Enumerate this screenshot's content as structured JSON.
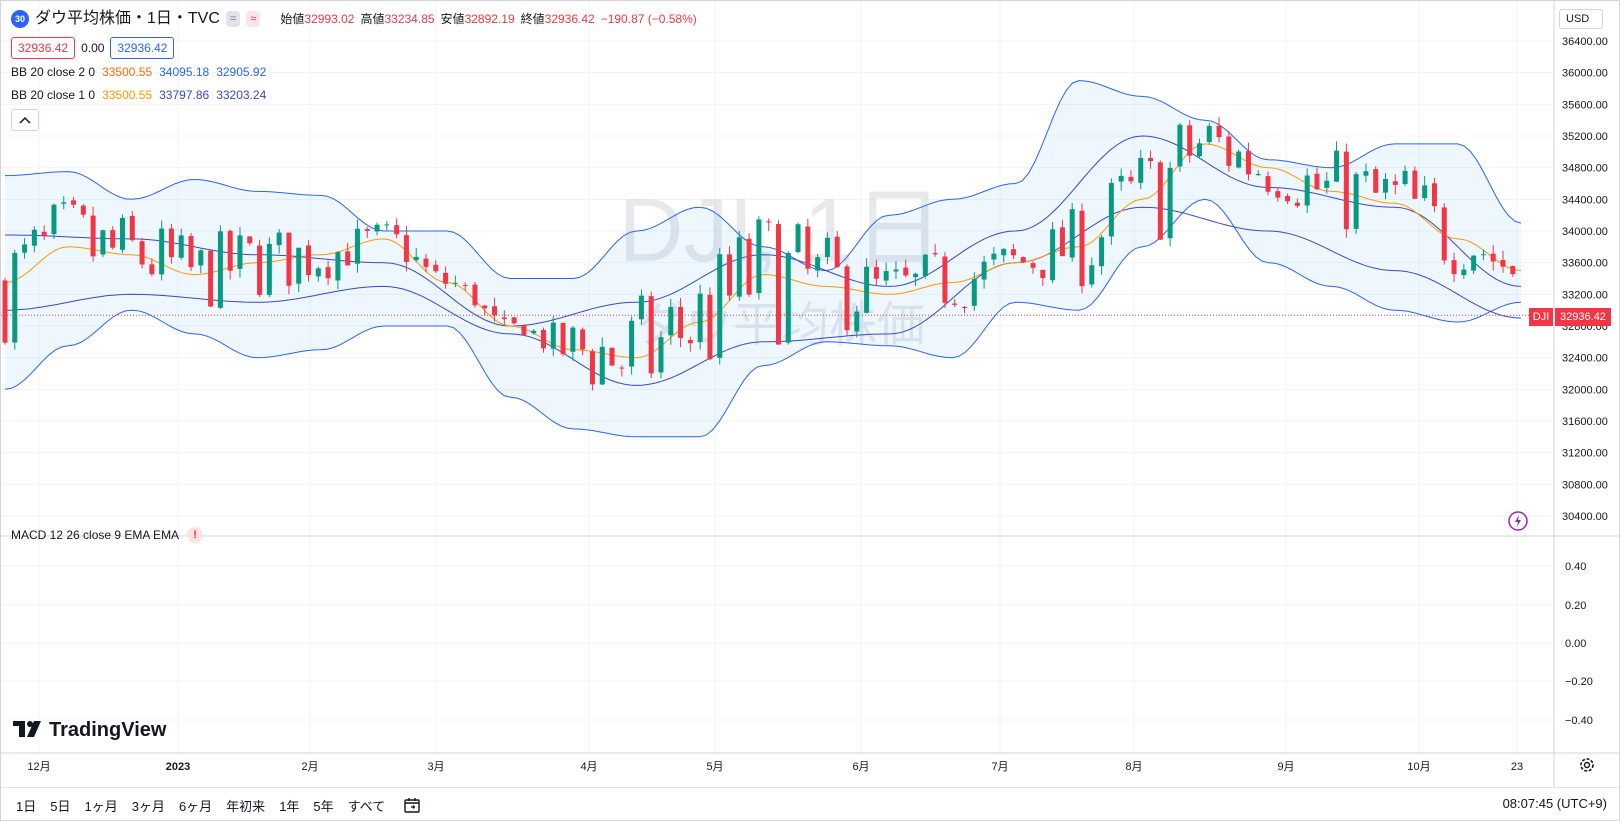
{
  "header": {
    "symbol_badge": "30",
    "title": "ダウ平均株価・1日・TVC",
    "pill_gray": "=",
    "pill_pink": "≈",
    "ohlc": [
      {
        "label": "始値",
        "value": "32993.02"
      },
      {
        "label": "高値",
        "value": "33234.85"
      },
      {
        "label": "安値",
        "value": "32892.19"
      },
      {
        "label": "終値",
        "value": "32936.42"
      },
      {
        "label": "",
        "value": "−190.87 (−0.58%)"
      }
    ],
    "bid": "32936.42",
    "spread": "0.00",
    "ask": "32936.42",
    "collapse_icon": "chevron-up-icon"
  },
  "indicators": [
    {
      "label": "BB 20 close 2 0",
      "basis": "33500.55",
      "upper": "34095.18",
      "lower": "32905.92"
    },
    {
      "label": "BB 20 close 1 0",
      "basis": "33500.55",
      "upper": "33797.86",
      "lower": "33203.24"
    }
  ],
  "watermark": {
    "main": "DJI, 1日",
    "sub": "ダウ平均株価"
  },
  "currency": "USD",
  "last_price": {
    "symbol": "DJI",
    "value": "32936.42"
  },
  "price_axis_ticks": [
    "36400.00",
    "36000.00",
    "35600.00",
    "35200.00",
    "34800.00",
    "34400.00",
    "34000.00",
    "33600.00",
    "33200.00",
    "32800.00",
    "32400.00",
    "32000.00",
    "31600.00",
    "31200.00",
    "30800.00",
    "30400.00"
  ],
  "macd": {
    "label": "MACD 12 26 close 9 EMA EMA",
    "warning": "!",
    "ticks": [
      "0.40",
      "0.20",
      "0.00",
      "−0.20",
      "−0.40"
    ]
  },
  "time_axis": [
    "12月",
    "2023",
    "2月",
    "3月",
    "4月",
    "5月",
    "6月",
    "7月",
    "8月",
    "9月",
    "10月",
    "23"
  ],
  "logo": {
    "text": "TradingView"
  },
  "ranges": [
    "1日",
    "5日",
    "1ヶ月",
    "3ヶ月",
    "6ヶ月",
    "年初来",
    "1年",
    "5年",
    "すべて"
  ],
  "clock": "08:07:45 (UTC+9)",
  "colors": {
    "up": "#089981",
    "down": "#f23645",
    "band_outer": "#2962ff",
    "band_inner": "#3848c9",
    "basis": "#ff9800",
    "band_fill": "#e3f2fd"
  },
  "chart_data": {
    "type": "candlestick",
    "title": "ダウ平均株価・1日・TVC",
    "y_axis_range": [
      30200,
      36600
    ],
    "x_range": [
      "2022-11-23",
      "2023-10-23"
    ],
    "series": [
      {
        "name": "BB 20 close 2 0",
        "type": "band",
        "upper_points": [
          [
            0,
            34700
          ],
          [
            20,
            34750
          ],
          [
            40,
            34400
          ],
          [
            60,
            34650
          ],
          [
            80,
            34500
          ],
          [
            100,
            34450
          ],
          [
            120,
            34000
          ],
          [
            140,
            34000
          ],
          [
            160,
            33400
          ],
          [
            180,
            33400
          ],
          [
            200,
            34000
          ],
          [
            220,
            34300
          ],
          [
            240,
            33800
          ],
          [
            260,
            33500
          ],
          [
            280,
            34200
          ],
          [
            300,
            34400
          ],
          [
            320,
            34600
          ],
          [
            340,
            35900
          ],
          [
            360,
            35700
          ],
          [
            380,
            35400
          ],
          [
            400,
            34900
          ],
          [
            420,
            34800
          ],
          [
            440,
            35100
          ],
          [
            460,
            35100
          ],
          [
            480,
            34100
          ]
        ],
        "lower_points": [
          [
            0,
            32000
          ],
          [
            20,
            32550
          ],
          [
            40,
            33000
          ],
          [
            60,
            32700
          ],
          [
            80,
            32400
          ],
          [
            100,
            32500
          ],
          [
            120,
            32800
          ],
          [
            140,
            32800
          ],
          [
            160,
            31900
          ],
          [
            180,
            31500
          ],
          [
            200,
            31400
          ],
          [
            220,
            31400
          ],
          [
            240,
            32300
          ],
          [
            260,
            32600
          ],
          [
            280,
            32550
          ],
          [
            300,
            32400
          ],
          [
            320,
            33100
          ],
          [
            340,
            33000
          ],
          [
            360,
            33800
          ],
          [
            380,
            34400
          ],
          [
            400,
            33600
          ],
          [
            420,
            33300
          ],
          [
            440,
            33000
          ],
          [
            460,
            32850
          ],
          [
            480,
            33100
          ]
        ]
      },
      {
        "name": "BB 20 close 1 0",
        "type": "band",
        "upper_points": [
          [
            0,
            33950
          ],
          [
            40,
            33900
          ],
          [
            80,
            33700
          ],
          [
            120,
            33600
          ],
          [
            160,
            32800
          ],
          [
            200,
            33100
          ],
          [
            240,
            33700
          ],
          [
            280,
            33300
          ],
          [
            320,
            34000
          ],
          [
            360,
            35200
          ],
          [
            400,
            34550
          ],
          [
            440,
            34300
          ],
          [
            480,
            33300
          ]
        ],
        "lower_points": [
          [
            0,
            33000
          ],
          [
            40,
            33200
          ],
          [
            80,
            33100
          ],
          [
            120,
            33300
          ],
          [
            160,
            32700
          ],
          [
            200,
            32050
          ],
          [
            240,
            32600
          ],
          [
            280,
            32700
          ],
          [
            320,
            33600
          ],
          [
            360,
            34300
          ],
          [
            400,
            34000
          ],
          [
            440,
            33500
          ],
          [
            480,
            32900
          ]
        ]
      },
      {
        "name": "Basis",
        "type": "line",
        "points": [
          [
            0,
            33350
          ],
          [
            20,
            33800
          ],
          [
            40,
            33700
          ],
          [
            60,
            33450
          ],
          [
            80,
            33600
          ],
          [
            100,
            33700
          ],
          [
            120,
            33900
          ],
          [
            140,
            33350
          ],
          [
            160,
            32800
          ],
          [
            180,
            32500
          ],
          [
            200,
            32400
          ],
          [
            220,
            32850
          ],
          [
            240,
            33450
          ],
          [
            260,
            33300
          ],
          [
            280,
            33200
          ],
          [
            300,
            33350
          ],
          [
            320,
            33600
          ],
          [
            340,
            33800
          ],
          [
            360,
            34400
          ],
          [
            380,
            35100
          ],
          [
            400,
            34800
          ],
          [
            420,
            34500
          ],
          [
            440,
            34350
          ],
          [
            460,
            33900
          ],
          [
            480,
            33500
          ]
        ]
      },
      {
        "name": "DJI",
        "type": "candles",
        "last": 32936.42,
        "lows": [
          [
            161,
            31700
          ],
          [
            281,
            33000
          ]
        ],
        "highs": [
          [
            348,
            35600
          ],
          [
            420,
            34900
          ]
        ]
      }
    ]
  }
}
